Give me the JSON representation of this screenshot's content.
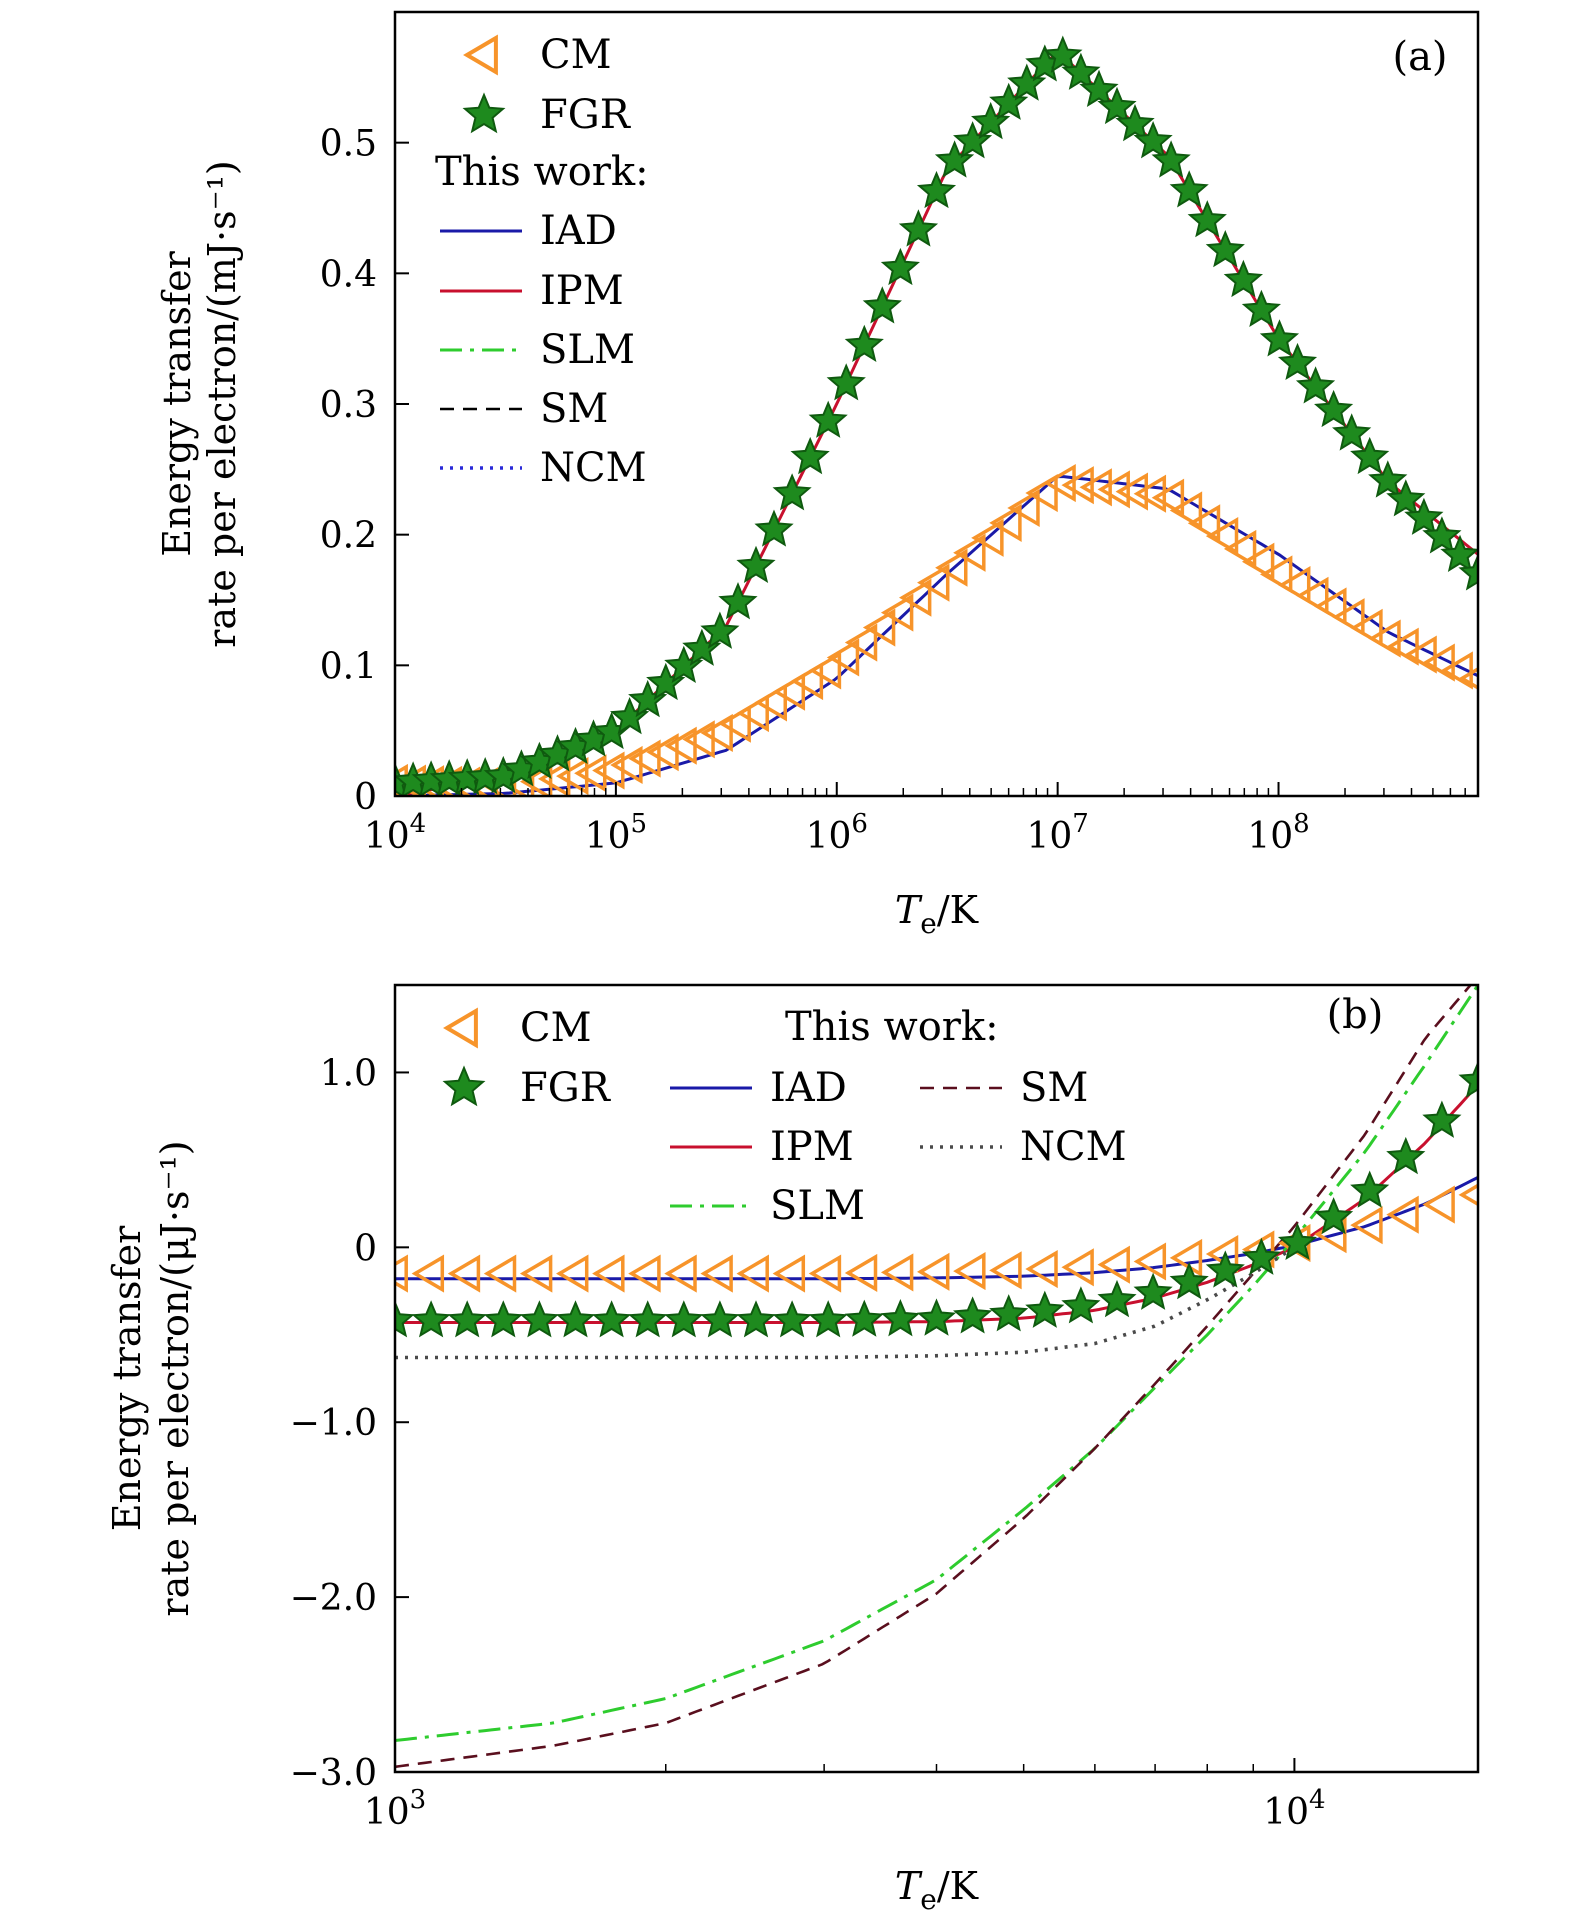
{
  "chart_data": [
    {
      "panel": "(a)",
      "type": "line",
      "xscale": "log",
      "xlim": [
        10000,
        800000000
      ],
      "ylim": [
        0,
        0.6
      ],
      "xlabel": "T_e/K",
      "ylabel_lines": [
        "Energy transfer",
        "rate per electron/(mJ·s⁻¹)"
      ],
      "yticks": [
        0,
        0.1,
        0.2,
        0.3,
        0.4,
        0.5
      ],
      "ytick_labels": [
        "0",
        "0.1",
        "0.2",
        "0.3",
        "0.4",
        "0.5"
      ],
      "xticks": [
        10000,
        100000,
        1000000,
        10000000,
        100000000
      ],
      "xtick_exponents": [
        "4",
        "5",
        "6",
        "7",
        "8"
      ],
      "legend": {
        "position": "top-left",
        "title": "This work:",
        "entries": [
          "CM",
          "FGR",
          "IAD",
          "IPM",
          "SLM",
          "SM",
          "NCM"
        ]
      },
      "series": [
        {
          "name": "CM",
          "style": "marker",
          "marker": "triangle-left",
          "color": "#f7942a",
          "x": [
            10000,
            31600,
            100000,
            316000,
            1000000,
            3160000,
            10000000,
            31600000,
            100000000,
            316000000,
            800000000
          ],
          "y": [
            0.01,
            0.007,
            0.02,
            0.05,
            0.1,
            0.17,
            0.24,
            0.23,
            0.17,
            0.12,
            0.09
          ]
        },
        {
          "name": "FGR",
          "style": "marker",
          "marker": "star",
          "color": "#1e8a1e",
          "x": [
            10000,
            31600,
            100000,
            316000,
            1000000,
            3160000,
            10000000,
            31600000,
            100000000,
            316000000,
            800000000
          ],
          "y": [
            0.01,
            0.015,
            0.05,
            0.13,
            0.3,
            0.48,
            0.57,
            0.49,
            0.35,
            0.24,
            0.17
          ]
        },
        {
          "name": "IAD",
          "style": "solid",
          "color": "#1a1aa8",
          "x": [
            10000,
            31600,
            100000,
            316000,
            1000000,
            3160000,
            10000000,
            31600000,
            100000000,
            316000000,
            800000000
          ],
          "y": [
            0.0,
            0.002,
            0.01,
            0.035,
            0.09,
            0.17,
            0.245,
            0.235,
            0.185,
            0.125,
            0.092
          ]
        },
        {
          "name": "IPM",
          "style": "solid",
          "color": "#c8102e",
          "x": [
            10000,
            31600,
            100000,
            316000,
            1000000,
            3160000,
            10000000,
            31600000,
            100000000,
            316000000,
            800000000
          ],
          "y": [
            0.0,
            0.015,
            0.05,
            0.13,
            0.3,
            0.48,
            0.57,
            0.49,
            0.35,
            0.24,
            0.185
          ]
        },
        {
          "name": "SLM",
          "style": "dashdot",
          "color": "#2ecc2e",
          "x": [],
          "y": []
        },
        {
          "name": "SM",
          "style": "dashed",
          "color": "#000000",
          "x": [],
          "y": []
        },
        {
          "name": "NCM",
          "style": "dotted",
          "color": "#2a2ad8",
          "x": [],
          "y": []
        }
      ]
    },
    {
      "panel": "(b)",
      "type": "line",
      "xscale": "log",
      "xlim": [
        1000,
        16000
      ],
      "ylim": [
        -3.0,
        1.5
      ],
      "xlabel": "T_e/K",
      "ylabel_lines": [
        "Energy transfer",
        "rate per electron/(μJ·s⁻¹)"
      ],
      "yticks": [
        -3,
        -2,
        -1,
        0,
        1
      ],
      "ytick_labels": [
        "−3.0",
        "−2.0",
        "−1.0",
        "0",
        "1.0"
      ],
      "xticks": [
        1000,
        10000
      ],
      "xtick_exponents": [
        "3",
        "4"
      ],
      "legend": {
        "position": "top-left",
        "title": "This work:",
        "entries": [
          "CM",
          "FGR",
          "IAD",
          "IPM",
          "SLM",
          "SM",
          "NCM"
        ]
      },
      "series": [
        {
          "name": "CM",
          "style": "marker",
          "marker": "triangle-left",
          "color": "#f7942a",
          "x": [
            1000,
            1500,
            2000,
            3000,
            4000,
            5000,
            6000,
            7000,
            8000,
            9000,
            10000,
            12000,
            14000,
            16000
          ],
          "y": [
            -0.15,
            -0.15,
            -0.15,
            -0.15,
            -0.14,
            -0.13,
            -0.11,
            -0.08,
            -0.05,
            -0.02,
            0.02,
            0.12,
            0.22,
            0.3
          ]
        },
        {
          "name": "FGR",
          "style": "marker",
          "marker": "star",
          "color": "#1e8a1e",
          "x": [
            1000,
            1500,
            2000,
            3000,
            4000,
            5000,
            6000,
            7000,
            8000,
            9000,
            10000,
            12000,
            14000,
            16000
          ],
          "y": [
            -0.42,
            -0.42,
            -0.42,
            -0.42,
            -0.41,
            -0.38,
            -0.33,
            -0.26,
            -0.17,
            -0.08,
            0.01,
            0.3,
            0.62,
            0.95
          ]
        },
        {
          "name": "IAD",
          "style": "solid",
          "color": "#1a1aa8",
          "x": [
            1000,
            2000,
            3000,
            4000,
            5000,
            6000,
            7000,
            8000,
            9000,
            10000,
            12000,
            14000,
            16000
          ],
          "y": [
            -0.18,
            -0.18,
            -0.18,
            -0.175,
            -0.165,
            -0.145,
            -0.115,
            -0.075,
            -0.035,
            0.01,
            0.12,
            0.25,
            0.4
          ]
        },
        {
          "name": "IPM",
          "style": "solid",
          "color": "#c8102e",
          "x": [
            1000,
            2000,
            3000,
            4000,
            5000,
            6000,
            7000,
            8000,
            9000,
            10000,
            12000,
            14000,
            16000
          ],
          "y": [
            -0.43,
            -0.43,
            -0.43,
            -0.425,
            -0.405,
            -0.36,
            -0.29,
            -0.2,
            -0.1,
            0.0,
            0.28,
            0.6,
            0.93
          ]
        },
        {
          "name": "SLM",
          "style": "dashdot",
          "color": "#2ecc2e",
          "x": [
            1000,
            1500,
            2000,
            3000,
            4000,
            5000,
            6000,
            7000,
            8000,
            9000,
            10000,
            12000,
            14000,
            16000
          ],
          "y": [
            -2.82,
            -2.72,
            -2.58,
            -2.25,
            -1.9,
            -1.5,
            -1.15,
            -0.8,
            -0.5,
            -0.22,
            0.05,
            0.55,
            1.05,
            1.5
          ]
        },
        {
          "name": "SM",
          "style": "dashed",
          "color": "#5a0f1e",
          "x": [
            1000,
            1500,
            2000,
            3000,
            4000,
            5000,
            6000,
            7000,
            8000,
            9000,
            10000,
            12000,
            14000,
            16000
          ],
          "y": [
            -2.97,
            -2.85,
            -2.72,
            -2.38,
            -1.98,
            -1.55,
            -1.15,
            -0.78,
            -0.45,
            -0.15,
            0.12,
            0.65,
            1.2,
            1.55
          ]
        },
        {
          "name": "NCM",
          "style": "dotted",
          "color": "#4a4a4a",
          "x": [
            1000,
            2000,
            3000,
            4000,
            5000,
            6000,
            7000,
            8000,
            9000,
            10000
          ],
          "y": [
            -0.63,
            -0.63,
            -0.63,
            -0.62,
            -0.6,
            -0.55,
            -0.45,
            -0.3,
            -0.15,
            0.0
          ]
        }
      ]
    }
  ]
}
